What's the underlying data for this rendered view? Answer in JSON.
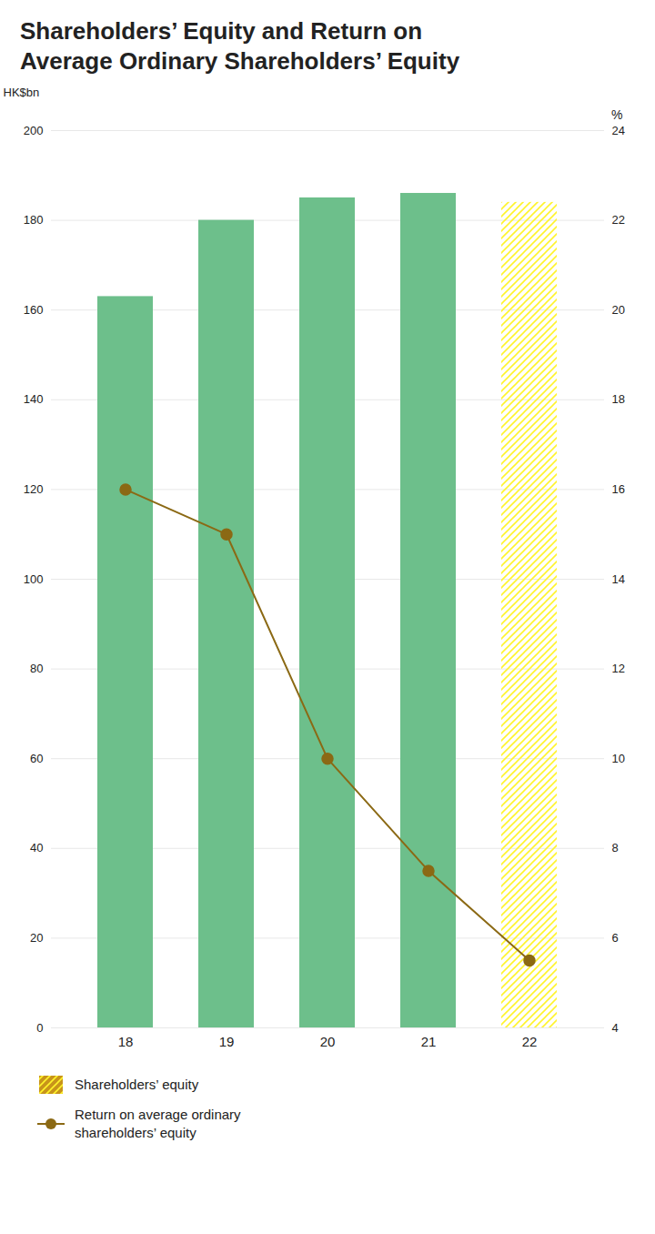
{
  "chart_data": {
    "type": "bar",
    "title": "Shareholders’ Equity and Return on\nAverage Ordinary Shareholders’ Equity",
    "categories": [
      "18",
      "19",
      "20",
      "21",
      "22"
    ],
    "ylabel": "HK$bn",
    "y2label": "%",
    "ylim": [
      0,
      200
    ],
    "yticks": [
      0,
      20,
      40,
      60,
      80,
      100,
      120,
      140,
      160,
      180,
      200
    ],
    "y2lim": [
      4,
      24
    ],
    "y2ticks": [
      4,
      6,
      8,
      10,
      12,
      14,
      16,
      18,
      20,
      22,
      24
    ],
    "grid": true,
    "legend": "bottom",
    "series": [
      {
        "name": "Shareholders’ equity",
        "type": "bar",
        "color": "#c8941a",
        "colors": [
          "#6dbf8b",
          "#6dbf8b",
          "#6dbf8b",
          "#6dbf8b",
          "#c8941a"
        ],
        "values": [
          163,
          180,
          185,
          186,
          184
        ]
      },
      {
        "name": "Return on average ordinary\nshareholders’ equity",
        "type": "line",
        "axis": "y2",
        "color": "#8B6914",
        "marker": "circle",
        "values": [
          16.0,
          15.0,
          10.0,
          7.5,
          5.5
        ]
      }
    ]
  }
}
